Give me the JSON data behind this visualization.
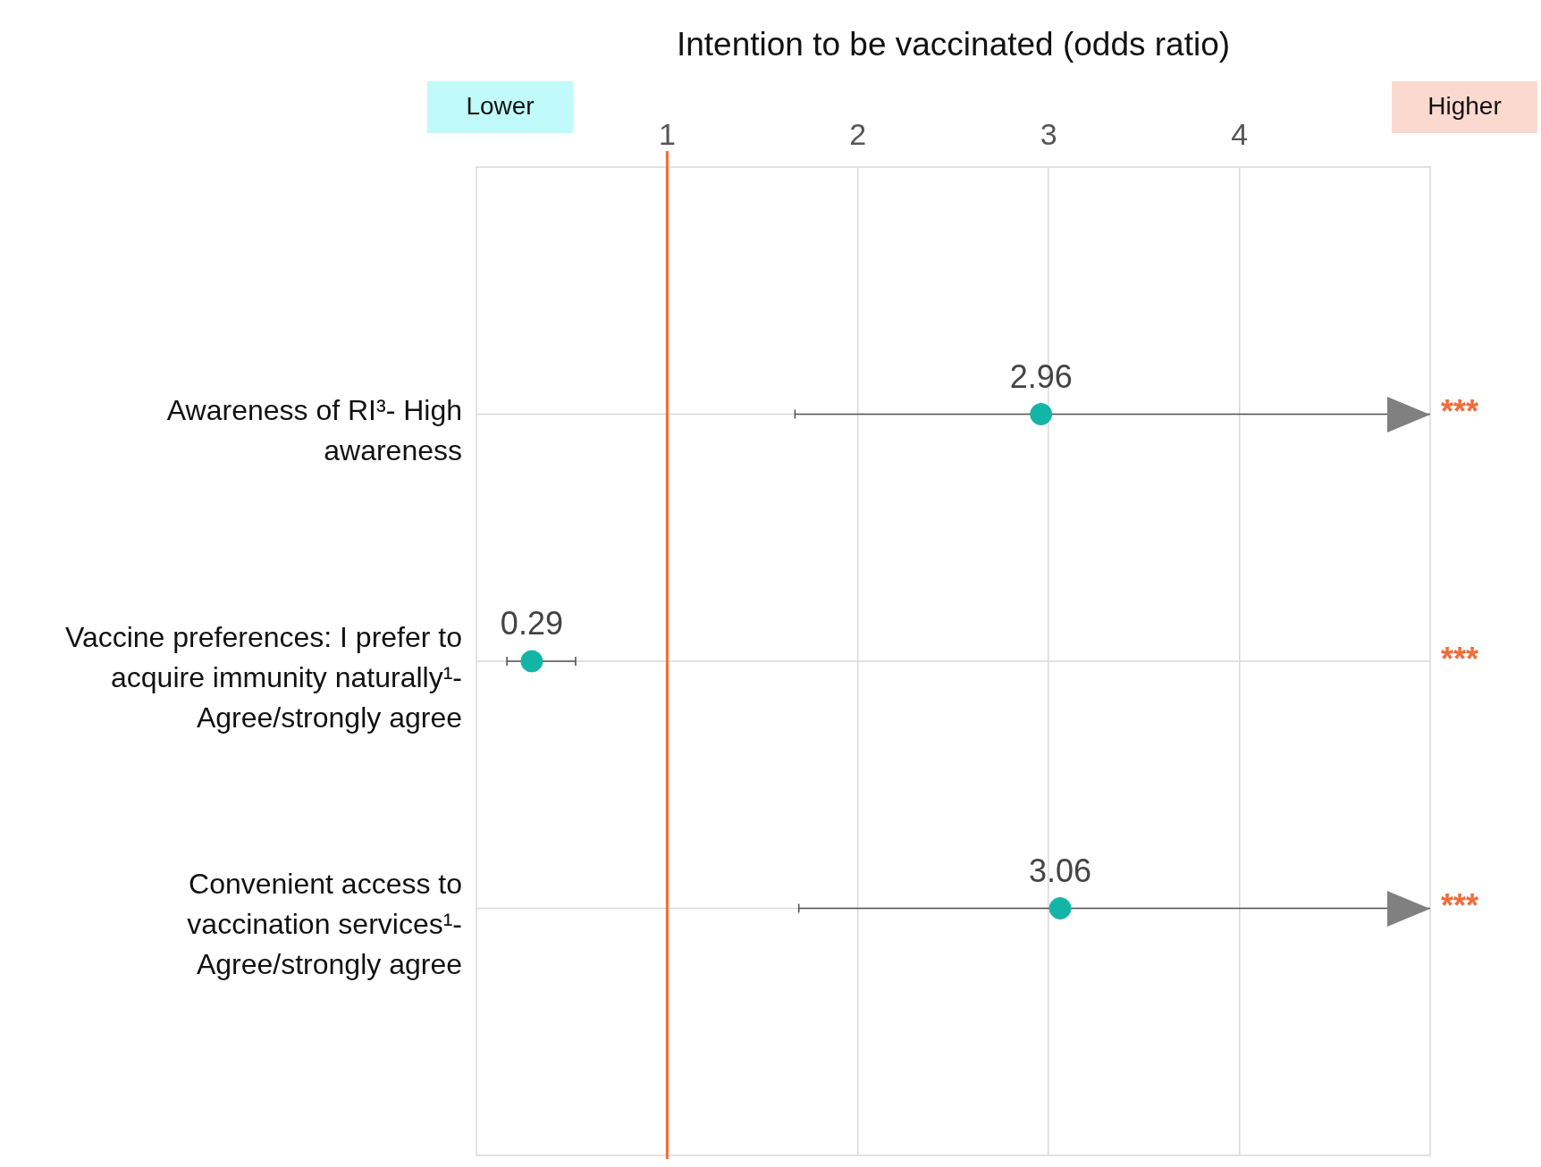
{
  "chart_data": {
    "type": "scatter",
    "orientation": "horizontal",
    "xlabel": "Intention to be vaccinated (odds ratio)",
    "categories": [
      "Awareness of RI³- High awareness",
      "Vaccine preferences: I prefer to acquire immunity naturally¹- Agree/strongly agree",
      "Convenient access to vaccination services¹- Agree/strongly agree"
    ],
    "values": [
      2.96,
      0.29,
      3.06
    ],
    "errors": [
      [
        1.67,
        5
      ],
      [
        0.16,
        0.52
      ],
      [
        1.69,
        5
      ]
    ],
    "color": "#13b5a7",
    "marker": "circle",
    "data_labels": true,
    "xlim": [
      0,
      5
    ],
    "xticks": [
      1,
      2,
      3,
      4
    ],
    "grid": true,
    "ref_lines": [
      {
        "axis": "x",
        "value": 1,
        "color": "#f26b3a"
      }
    ],
    "annotations": [
      "Lower",
      "Higher",
      "***",
      "***",
      "***"
    ]
  }
}
